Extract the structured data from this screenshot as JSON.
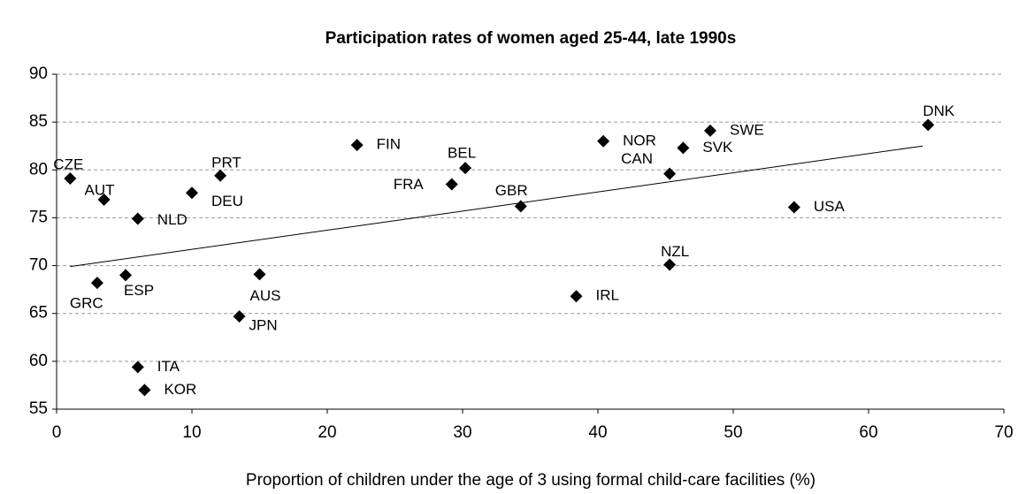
{
  "chart_data": {
    "type": "scatter",
    "title": "Participation rates of women aged 25-44, late 1990s",
    "x_label": "Proportion of children under the age of 3 using formal child-care facilities (%)",
    "labels": [
      "CZE",
      "AUT",
      "NLD",
      "ESP",
      "GRC",
      "DEU",
      "PRT",
      "ITA",
      "KOR",
      "JPN",
      "AUS",
      "FIN",
      "FRA",
      "BEL",
      "GBR",
      "IRL",
      "NOR",
      "CAN",
      "NZL",
      "SVK",
      "SWE",
      "USA",
      "DNK"
    ],
    "x": [
      1,
      3.5,
      6,
      5.1,
      3,
      10,
      12.1,
      6,
      6.5,
      13.5,
      15,
      22.2,
      29.2,
      30.2,
      34.3,
      38.4,
      40.4,
      45.3,
      45.3,
      46.3,
      48.3,
      54.5,
      64.4
    ],
    "values": [
      79.1,
      76.9,
      74.9,
      69.0,
      68.2,
      77.6,
      79.4,
      59.4,
      57.0,
      64.7,
      69.1,
      82.6,
      78.5,
      80.2,
      76.2,
      66.8,
      83.0,
      79.6,
      70.1,
      82.3,
      84.1,
      76.1,
      84.7
    ],
    "color": "#000000",
    "trendline": {
      "x": [
        1,
        64
      ],
      "y": [
        69.9,
        82.5
      ]
    },
    "xlim": [
      0,
      70
    ],
    "xticks": [
      0,
      10,
      20,
      30,
      40,
      50,
      60,
      70
    ],
    "ylim": [
      55,
      90
    ],
    "yticks": [
      55,
      60,
      65,
      70,
      75,
      80,
      85,
      90
    ],
    "grid": true
  }
}
